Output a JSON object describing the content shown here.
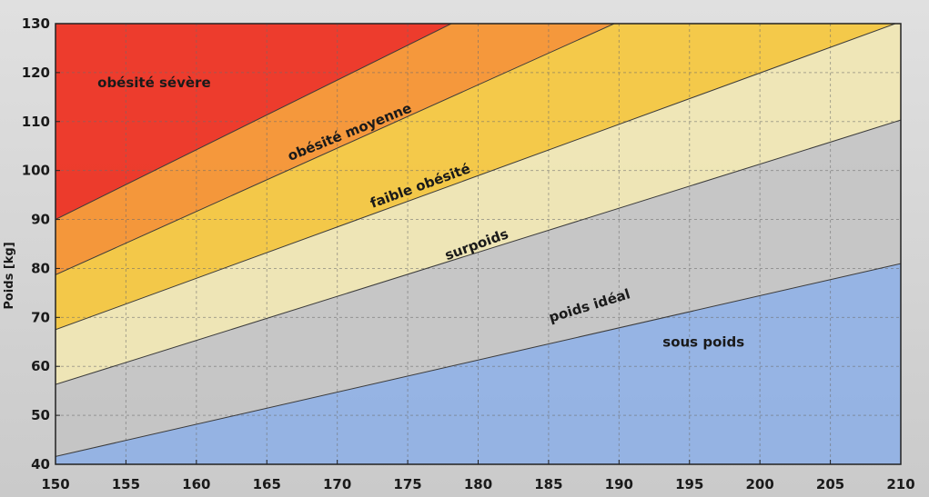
{
  "chart_data": {
    "type": "area",
    "title": "",
    "xlabel": "",
    "ylabel": "Poids [kg]",
    "xlim": [
      150,
      210
    ],
    "ylim": [
      40,
      130
    ],
    "x_ticks": [
      150,
      155,
      160,
      165,
      170,
      175,
      180,
      185,
      190,
      195,
      200,
      205,
      210
    ],
    "y_ticks": [
      40,
      50,
      60,
      70,
      80,
      90,
      100,
      110,
      120,
      130
    ],
    "grid": true,
    "boundaries": [
      {
        "x": [
          150,
          210
        ],
        "y": [
          41.6,
          81.0
        ]
      },
      {
        "x": [
          150,
          210
        ],
        "y": [
          56.3,
          110.3
        ]
      },
      {
        "x": [
          150,
          210
        ],
        "y": [
          67.5,
          130.4
        ]
      },
      {
        "x": [
          150,
          210
        ],
        "y": [
          78.7,
          156.3
        ]
      },
      {
        "x": [
          150,
          210
        ],
        "y": [
          90.0,
          175.4
        ]
      }
    ],
    "zones": [
      {
        "name": "sous poids",
        "color": "#8fb0e6",
        "label_pos": [
          196,
          64
        ],
        "rotation": 0
      },
      {
        "name": "poids idéal",
        "color": "#c4c4c4",
        "label_pos": [
          188,
          71.5
        ],
        "rotation": -17
      },
      {
        "name": "surpoids",
        "color": "#f1e7b2",
        "label_pos": [
          180,
          84
        ],
        "rotation": -20
      },
      {
        "name": "faible obésité",
        "color": "#f6c63a",
        "label_pos": [
          176,
          96
        ],
        "rotation": -20
      },
      {
        "name": "obésité moyenne",
        "color": "#f7902a",
        "label_pos": [
          171,
          107
        ],
        "rotation": -22
      },
      {
        "name": "obésité sévère",
        "color": "#ee2a1a",
        "label_pos": [
          157,
          117
        ],
        "rotation": 0
      }
    ]
  }
}
